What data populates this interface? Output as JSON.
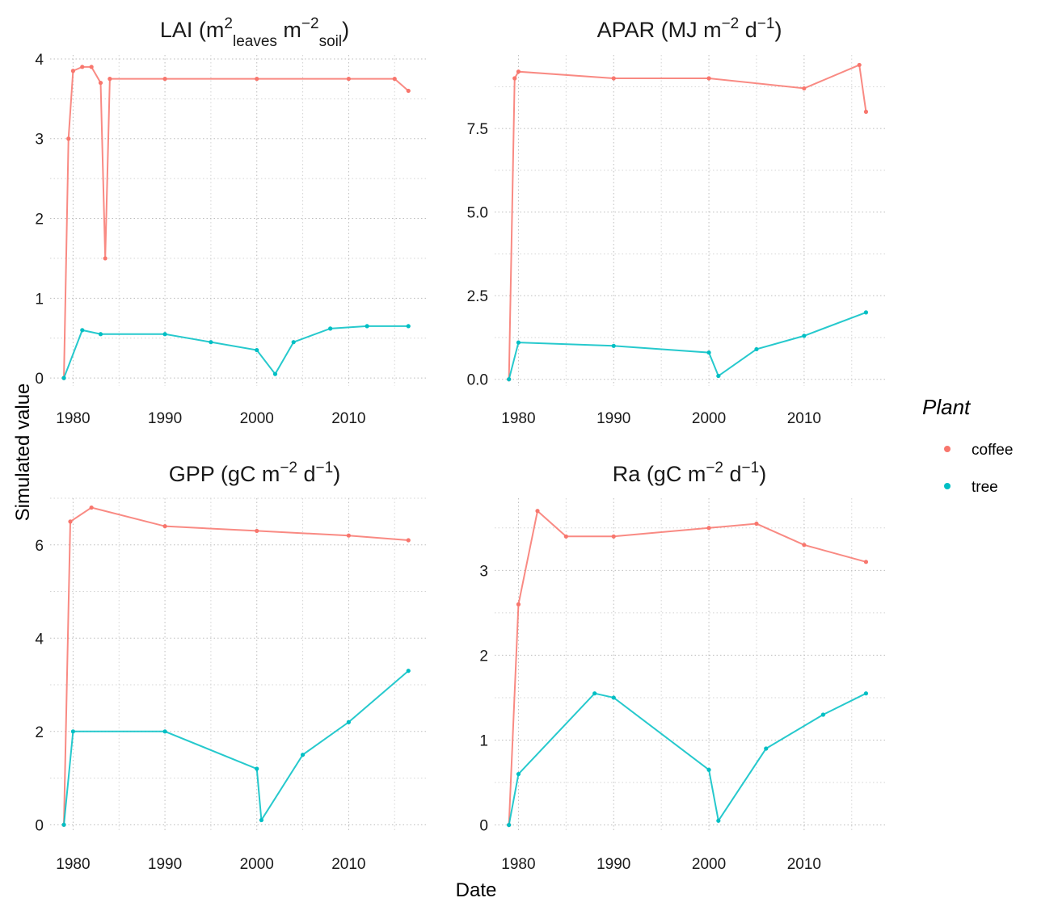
{
  "figure": {
    "ylabel": "Simulated value",
    "xlabel": "Date",
    "legend": {
      "title": "Plant",
      "placement": "right",
      "items": [
        {
          "label": "coffee",
          "color": "#F8766D"
        },
        {
          "label": "tree",
          "color": "#00BFC4"
        }
      ]
    }
  },
  "chart_data": [
    {
      "type": "scatter",
      "title_parts": {
        "main": "LAI (m",
        "sup1": "2",
        "sub1": "leaves",
        "mid": " m",
        "sup2": "−2",
        "sub2": "soil",
        "end": ")"
      },
      "xlim": [
        1977.5,
        2018.5
      ],
      "ylim": [
        -0.1,
        4.05
      ],
      "xticks": [
        1980,
        1990,
        2000,
        2010
      ],
      "yticks": [
        0,
        1,
        2,
        3,
        4
      ],
      "ytick_labels": [
        "0",
        "1",
        "2",
        "3",
        "4"
      ],
      "grid": true,
      "series": [
        {
          "name": "coffee",
          "x": [
            1979.0,
            1979.5,
            1980.0,
            1981.0,
            1982.0,
            1983.0,
            1983.5,
            1984.0,
            1990.0,
            2000.0,
            2010.0,
            2015.0,
            2016.5
          ],
          "y": [
            0.0,
            3.0,
            3.85,
            3.9,
            3.9,
            3.7,
            1.5,
            3.75,
            3.75,
            3.75,
            3.75,
            3.75,
            3.6
          ]
        },
        {
          "name": "tree",
          "x": [
            1979.0,
            1981.0,
            1983.0,
            1990.0,
            1995.0,
            2000.0,
            2002.0,
            2004.0,
            2008.0,
            2012.0,
            2016.5
          ],
          "y": [
            0.0,
            0.6,
            0.55,
            0.55,
            0.45,
            0.35,
            0.05,
            0.45,
            0.62,
            0.65,
            0.65
          ]
        }
      ]
    },
    {
      "type": "scatter",
      "title_parts": {
        "main": "APAR (MJ m",
        "sup1": "−2",
        "mid": " d",
        "sup2": "−1",
        "end": ")"
      },
      "xlim": [
        1977.5,
        2018.5
      ],
      "ylim": [
        -0.2,
        9.7
      ],
      "xticks": [
        1980,
        1990,
        2000,
        2010
      ],
      "yticks": [
        0,
        2.5,
        5,
        7.5
      ],
      "ytick_labels": [
        "0.0",
        "2.5",
        "5.0",
        "7.5"
      ],
      "grid": true,
      "series": [
        {
          "name": "coffee",
          "x": [
            1979.0,
            1979.6,
            1980.0,
            1990.0,
            2000.0,
            2010.0,
            2015.8,
            2016.5
          ],
          "y": [
            0.0,
            9.0,
            9.2,
            9.0,
            9.0,
            8.7,
            9.4,
            8.0
          ]
        },
        {
          "name": "tree",
          "x": [
            1979.0,
            1980.0,
            1990.0,
            2000.0,
            2001.0,
            2005.0,
            2010.0,
            2016.5
          ],
          "y": [
            0.0,
            1.1,
            1.0,
            0.8,
            0.1,
            0.9,
            1.3,
            2.0
          ]
        }
      ]
    },
    {
      "type": "scatter",
      "title_parts": {
        "main": "GPP (gC m",
        "sup1": "−2",
        "mid": " d",
        "sup2": "−1",
        "end": ")"
      },
      "xlim": [
        1977.5,
        2018.5
      ],
      "ylim": [
        -0.15,
        7.0
      ],
      "xticks": [
        1980,
        1990,
        2000,
        2010
      ],
      "yticks": [
        0,
        2,
        4,
        6
      ],
      "ytick_labels": [
        "0",
        "2",
        "4",
        "6"
      ],
      "grid": true,
      "series": [
        {
          "name": "coffee",
          "x": [
            1979.0,
            1979.7,
            1982.0,
            1990.0,
            2000.0,
            2010.0,
            2016.5
          ],
          "y": [
            0.0,
            6.5,
            6.8,
            6.4,
            6.3,
            6.2,
            6.1
          ]
        },
        {
          "name": "tree",
          "x": [
            1979.0,
            1980.0,
            1990.0,
            2000.0,
            2000.5,
            2005.0,
            2010.0,
            2016.5
          ],
          "y": [
            0.0,
            2.0,
            2.0,
            1.2,
            0.1,
            1.5,
            2.2,
            3.3
          ]
        }
      ]
    },
    {
      "type": "scatter",
      "title_parts": {
        "main": "Ra (gC m",
        "sup1": "−2",
        "mid": " d",
        "sup2": "−1",
        "end": ")"
      },
      "xlim": [
        1977.5,
        2018.5
      ],
      "ylim": [
        -0.08,
        3.85
      ],
      "xticks": [
        1980,
        1990,
        2000,
        2010
      ],
      "yticks": [
        0,
        1,
        2,
        3
      ],
      "ytick_labels": [
        "0",
        "1",
        "2",
        "3"
      ],
      "grid": true,
      "series": [
        {
          "name": "coffee",
          "x": [
            1979.0,
            1980.0,
            1982.0,
            1985.0,
            1990.0,
            2000.0,
            2005.0,
            2010.0,
            2016.5
          ],
          "y": [
            0.0,
            2.6,
            3.7,
            3.4,
            3.4,
            3.5,
            3.55,
            3.3,
            3.1
          ]
        },
        {
          "name": "tree",
          "x": [
            1979.0,
            1980.0,
            1988.0,
            1990.0,
            2000.0,
            2001.0,
            2006.0,
            2012.0,
            2016.5
          ],
          "y": [
            0.0,
            0.6,
            1.55,
            1.5,
            0.65,
            0.05,
            0.9,
            1.3,
            1.55
          ]
        }
      ]
    }
  ]
}
